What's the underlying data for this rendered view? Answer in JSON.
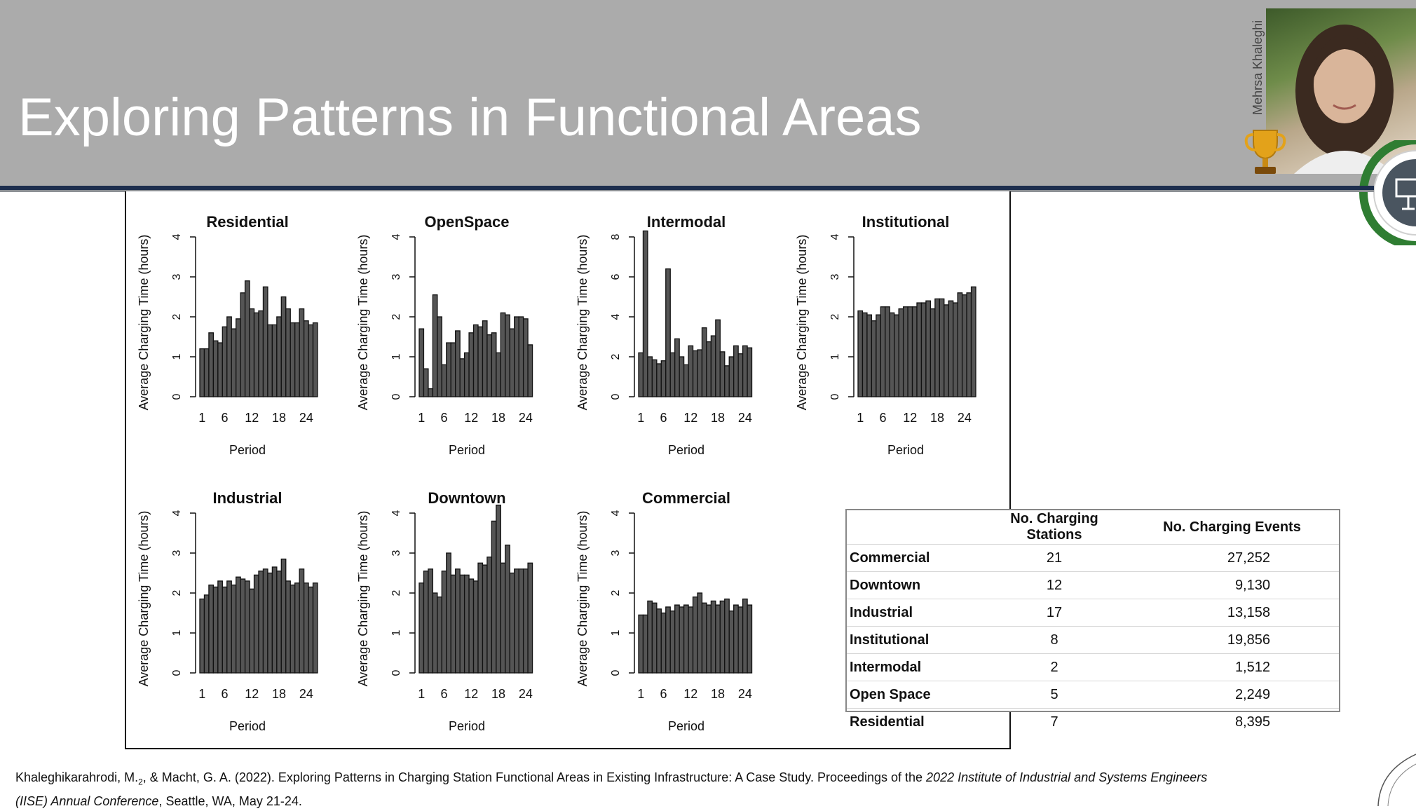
{
  "slide": {
    "title": "Exploring Patterns in Functional Areas",
    "presenter_name": "Mehrsa Khaleghi"
  },
  "colors": {
    "header_bg": "#ababab",
    "title_text": "#ffffff",
    "rule": "#1d2e4e",
    "bar_fill": "#555555",
    "badge_green": "#2f7d32"
  },
  "icons": {
    "trophy": "trophy-icon",
    "badge": "presentation-screen-icon"
  },
  "chart_data": [
    {
      "type": "bar",
      "title": "Residential",
      "xlabel": "Period",
      "ylabel": "Average Charging Time (hours)",
      "ylim": [
        0,
        4
      ],
      "yticks": [
        0,
        1,
        2,
        3,
        4
      ],
      "xticks": [
        1,
        6,
        12,
        18,
        24
      ],
      "x": [
        1,
        2,
        3,
        4,
        5,
        6,
        7,
        8,
        9,
        10,
        11,
        12,
        13,
        14,
        15,
        16,
        17,
        18,
        19,
        20,
        21,
        22,
        23,
        24,
        25,
        26
      ],
      "values": [
        1.2,
        1.2,
        1.6,
        1.4,
        1.35,
        1.75,
        2.0,
        1.7,
        1.95,
        2.6,
        2.9,
        2.2,
        2.1,
        2.15,
        2.75,
        1.8,
        1.8,
        2.0,
        2.5,
        2.2,
        1.85,
        1.85,
        2.2,
        1.9,
        1.8,
        1.85
      ]
    },
    {
      "type": "bar",
      "title": "OpenSpace",
      "xlabel": "Period",
      "ylabel": "Average Charging Time (hours)",
      "ylim": [
        0,
        4
      ],
      "yticks": [
        0,
        1,
        2,
        3,
        4
      ],
      "xticks": [
        1,
        6,
        12,
        18,
        24
      ],
      "x": [
        1,
        2,
        3,
        4,
        5,
        6,
        7,
        8,
        9,
        10,
        11,
        12,
        13,
        14,
        15,
        16,
        17,
        18,
        19,
        20,
        21,
        22,
        23,
        24,
        25,
        26
      ],
      "values": [
        1.7,
        0.7,
        0.2,
        2.55,
        2.0,
        0.8,
        1.35,
        1.35,
        1.65,
        0.95,
        1.1,
        1.6,
        1.8,
        1.75,
        1.9,
        1.55,
        1.6,
        1.1,
        2.1,
        2.05,
        1.7,
        2.0,
        2.0,
        1.95,
        1.3,
        0.0
      ]
    },
    {
      "type": "bar",
      "title": "Intermodal",
      "xlabel": "Period",
      "ylabel": "Average Charging Time (hours)",
      "ylim": [
        0,
        8
      ],
      "yticks": [
        0,
        2,
        4,
        6,
        8
      ],
      "xticks": [
        1,
        6,
        12,
        18,
        24
      ],
      "x": [
        1,
        2,
        3,
        4,
        5,
        6,
        7,
        8,
        9,
        10,
        11,
        12,
        13,
        14,
        15,
        16,
        17,
        18,
        19,
        20,
        21,
        22,
        23,
        24,
        25,
        26
      ],
      "values": [
        2.2,
        8.3,
        2.0,
        1.85,
        1.65,
        1.8,
        6.4,
        2.2,
        2.9,
        2.0,
        1.6,
        2.55,
        2.3,
        2.35,
        3.45,
        2.75,
        3.05,
        3.85,
        2.25,
        1.55,
        2.0,
        2.55,
        2.15,
        2.55,
        2.45,
        0.0
      ]
    },
    {
      "type": "bar",
      "title": "Institutional",
      "xlabel": "Period",
      "ylabel": "Average Charging Time (hours)",
      "ylim": [
        0,
        4
      ],
      "yticks": [
        0,
        1,
        2,
        3,
        4
      ],
      "xticks": [
        1,
        6,
        12,
        18,
        24
      ],
      "x": [
        1,
        2,
        3,
        4,
        5,
        6,
        7,
        8,
        9,
        10,
        11,
        12,
        13,
        14,
        15,
        16,
        17,
        18,
        19,
        20,
        21,
        22,
        23,
        24,
        25,
        26
      ],
      "values": [
        2.15,
        2.1,
        2.05,
        1.9,
        2.05,
        2.25,
        2.25,
        2.1,
        2.05,
        2.2,
        2.25,
        2.25,
        2.25,
        2.35,
        2.35,
        2.4,
        2.2,
        2.45,
        2.45,
        2.3,
        2.4,
        2.35,
        2.6,
        2.55,
        2.6,
        2.75
      ]
    },
    {
      "type": "bar",
      "title": "Industrial",
      "xlabel": "Period",
      "ylabel": "Average Charging Time (hours)",
      "ylim": [
        0,
        4
      ],
      "yticks": [
        0,
        1,
        2,
        3,
        4
      ],
      "xticks": [
        1,
        6,
        12,
        18,
        24
      ],
      "x": [
        1,
        2,
        3,
        4,
        5,
        6,
        7,
        8,
        9,
        10,
        11,
        12,
        13,
        14,
        15,
        16,
        17,
        18,
        19,
        20,
        21,
        22,
        23,
        24,
        25,
        26
      ],
      "values": [
        1.85,
        1.95,
        2.2,
        2.15,
        2.3,
        2.15,
        2.3,
        2.2,
        2.4,
        2.35,
        2.3,
        2.1,
        2.45,
        2.55,
        2.6,
        2.5,
        2.65,
        2.55,
        2.85,
        2.3,
        2.2,
        2.25,
        2.6,
        2.25,
        2.15,
        2.25
      ]
    },
    {
      "type": "bar",
      "title": "Downtown",
      "xlabel": "Period",
      "ylabel": "Average Charging Time (hours)",
      "ylim": [
        0,
        4
      ],
      "yticks": [
        0,
        1,
        2,
        3,
        4
      ],
      "xticks": [
        1,
        6,
        12,
        18,
        24
      ],
      "x": [
        1,
        2,
        3,
        4,
        5,
        6,
        7,
        8,
        9,
        10,
        11,
        12,
        13,
        14,
        15,
        16,
        17,
        18,
        19,
        20,
        21,
        22,
        23,
        24,
        25,
        26
      ],
      "values": [
        2.25,
        2.55,
        2.6,
        2.0,
        1.9,
        2.55,
        3.0,
        2.45,
        2.6,
        2.45,
        2.45,
        2.35,
        2.3,
        2.75,
        2.7,
        2.9,
        3.8,
        4.2,
        2.75,
        3.2,
        2.5,
        2.6,
        2.6,
        2.6,
        2.75,
        0.0
      ]
    },
    {
      "type": "bar",
      "title": "Commercial",
      "xlabel": "Period",
      "ylabel": "Average Charging Time (hours)",
      "ylim": [
        0,
        4
      ],
      "yticks": [
        0,
        1,
        2,
        3,
        4
      ],
      "xticks": [
        1,
        6,
        12,
        18,
        24
      ],
      "x": [
        1,
        2,
        3,
        4,
        5,
        6,
        7,
        8,
        9,
        10,
        11,
        12,
        13,
        14,
        15,
        16,
        17,
        18,
        19,
        20,
        21,
        22,
        23,
        24,
        25,
        26
      ],
      "values": [
        1.45,
        1.45,
        1.8,
        1.75,
        1.6,
        1.5,
        1.65,
        1.55,
        1.7,
        1.65,
        1.7,
        1.65,
        1.9,
        2.0,
        1.75,
        1.7,
        1.8,
        1.7,
        1.8,
        1.85,
        1.55,
        1.7,
        1.65,
        1.85,
        1.7,
        0.0
      ]
    },
    {
      "type": "table",
      "columns": [
        "",
        "No. Charging Stations",
        "No. Charging Events"
      ],
      "rows": [
        {
          "area": "Commercial",
          "stations": "21",
          "events": "27,252"
        },
        {
          "area": "Downtown",
          "stations": "12",
          "events": "9,130"
        },
        {
          "area": "Industrial",
          "stations": "17",
          "events": "13,158"
        },
        {
          "area": "Institutional",
          "stations": "8",
          "events": "19,856"
        },
        {
          "area": "Intermodal",
          "stations": "2",
          "events": "1,512"
        },
        {
          "area": "Open Space",
          "stations": "5",
          "events": "2,249"
        },
        {
          "area": "Residential",
          "stations": "7",
          "events": "8,395"
        }
      ]
    }
  ],
  "citation": {
    "authors": "Khaleghikarahrodi, M.",
    "author_sub": "2",
    "rest": ", & Macht, G. A. (2022). Exploring Patterns in Charging Station Functional Areas in Existing Infrastructure: A Case Study. Proceedings of the ",
    "venue": "2022 Institute of Industrial and Systems Engineers (IISE) Annual Conference",
    "tail": ", Seattle, WA, May 21-24."
  }
}
